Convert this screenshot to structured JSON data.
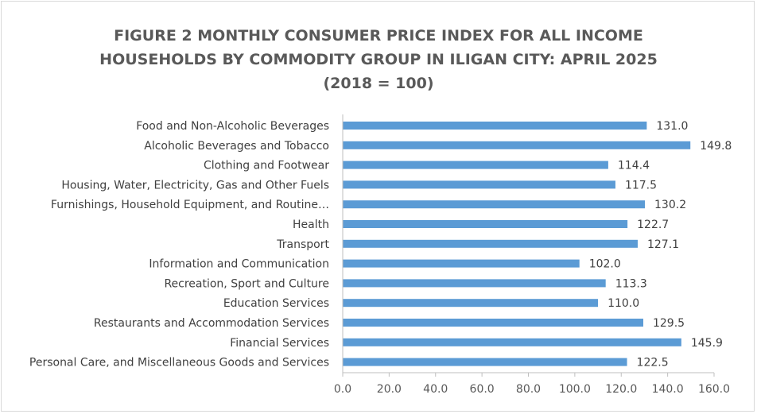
{
  "chart_data": {
    "type": "bar",
    "orientation": "horizontal",
    "title_lines": [
      "FIGURE 2 MONTHLY CONSUMER PRICE INDEX FOR ALL INCOME",
      "HOUSEHOLDS BY COMMODITY GROUP IN ILIGAN CITY: APRIL 2025",
      "(2018 = 100)"
    ],
    "categories": [
      "Food and Non-Alcoholic Beverages",
      "Alcoholic Beverages and Tobacco",
      "Clothing and Footwear",
      "Housing, Water, Electricity, Gas and Other Fuels",
      "Furnishings, Household Equipment, and Routine…",
      "Health",
      "Transport",
      "Information and Communication",
      "Recreation, Sport and Culture",
      "Education Services",
      "Restaurants and Accommodation Services",
      "Financial Services",
      "Personal Care, and Miscellaneous Goods and Services"
    ],
    "values": [
      131.0,
      149.8,
      114.4,
      117.5,
      130.2,
      122.7,
      127.1,
      102.0,
      113.3,
      110.0,
      129.5,
      145.9,
      122.5
    ],
    "value_labels": [
      "131.0",
      "149.8",
      "114.4",
      "117.5",
      "130.2",
      "122.7",
      "127.1",
      "102.0",
      "113.3",
      "110.0",
      "129.5",
      "145.9",
      "122.5"
    ],
    "xlim": [
      0,
      160
    ],
    "xticks": [
      0,
      20,
      40,
      60,
      80,
      100,
      120,
      140,
      160
    ],
    "xtick_labels": [
      "0.0",
      "20.0",
      "40.0",
      "60.0",
      "80.0",
      "100.0",
      "120.0",
      "140.0",
      "160.0"
    ],
    "grid": false,
    "legend": "none",
    "bar_color": "#5b9bd5",
    "axis_color": "#bfbfbf"
  }
}
